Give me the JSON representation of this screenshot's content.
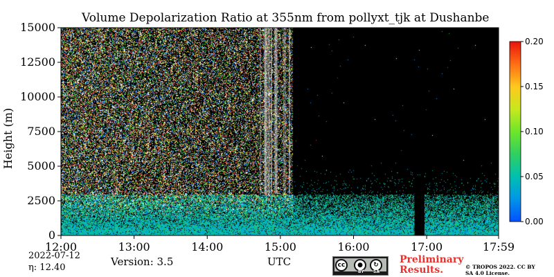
{
  "chart_data": {
    "type": "heatmap",
    "title": "Volume Depolarization Ratio at 355nm from pollyxt_tjk at Dushanbe",
    "xlabel": "UTC",
    "ylabel": "Height (m)",
    "x_ticks": [
      "12:00",
      "13:00",
      "14:00",
      "15:00",
      "16:00",
      "17:00",
      "17:59"
    ],
    "x_range": [
      "12:00",
      "17:59"
    ],
    "y_ticks": [
      0,
      2500,
      5000,
      7500,
      10000,
      12500,
      15000
    ],
    "ylim": [
      0,
      15000
    ],
    "colorbar": {
      "ticks": [
        "0.00",
        "0.05",
        "0.10",
        "0.15",
        "0.20"
      ],
      "range": [
        0,
        0.2
      ],
      "colormap": "jet"
    },
    "features": {
      "noisy_until": "15:10",
      "boundary_layer_top_m": 3000,
      "data_gap": [
        "16:50",
        "16:58"
      ]
    },
    "colors": {
      "background_no_data": "#000000",
      "noise": [
        "#ffffff",
        "#3cc23c",
        "#d43c3c",
        "#2b8cff",
        "#ffdc3c"
      ]
    }
  },
  "footer": {
    "date": "2022-07-12",
    "eta": "η:  12.40",
    "version": "Version: 3.5",
    "preliminary": "Preliminary Results.",
    "copyright": "© TROPOS 2022. CC BY SA 4.0 License."
  },
  "license_badge": {
    "by": "BY",
    "sa": "SA",
    "cc": "cc"
  }
}
